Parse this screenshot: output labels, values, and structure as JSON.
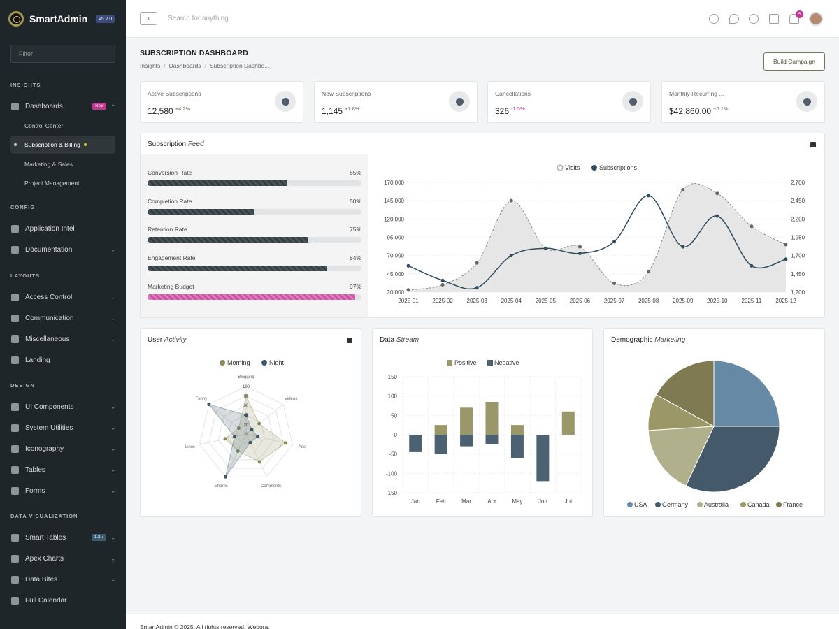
{
  "brand": {
    "name": "SmartAdmin",
    "version": "v5.2.0"
  },
  "sidebar": {
    "filter_placeholder": "Filter",
    "sections": {
      "insights": "INSIGHTS",
      "config": "CONFIG",
      "layouts": "LAYOUTS",
      "design": "DESIGN",
      "dataviz": "DATA VISUALIZATION"
    },
    "dashboards": {
      "label": "Dashboards",
      "badge": "New"
    },
    "sub": [
      "Control Center",
      "Subscription & Billing",
      "Marketing & Sales",
      "Project Management"
    ],
    "config": [
      "Application Intel",
      "Documentation"
    ],
    "layouts": [
      "Access Control",
      "Communication",
      "Miscellaneous",
      "Landing"
    ],
    "design": [
      "UI Components",
      "System Utilities",
      "Iconography",
      "Tables",
      "Forms"
    ],
    "dataviz": [
      "Smart Tables",
      "Apex Charts",
      "Data Bites",
      "Full Calendar"
    ],
    "smart_tables_badge": "1.2.7"
  },
  "topbar": {
    "search_placeholder": "Search for anything",
    "notif_count": "5"
  },
  "page": {
    "title": "SUBSCRIPTION DASHBOARD",
    "crumbs": [
      "Insights",
      "Dashboards",
      "Subscription Dashbo..."
    ],
    "build_button": "Build Campaign"
  },
  "stats": [
    {
      "label": "Active Subscriptions",
      "value": "12,580",
      "delta": "+4.2%"
    },
    {
      "label": "New Subscriptions",
      "value": "1,145",
      "delta": "+7.8%"
    },
    {
      "label": "Cancellations",
      "value": "326",
      "delta": "-1.5%"
    },
    {
      "label": "Monthly Recurring ...",
      "value": "$42,860.00",
      "delta": "+6.1%"
    }
  ],
  "feed": {
    "title": "Subscription",
    "title_em": "Feed",
    "progress": [
      {
        "label": "Conversion Rate",
        "pct": "65%",
        "value": 0.65
      },
      {
        "label": "Completion Rate",
        "pct": "50%",
        "value": 0.5
      },
      {
        "label": "Retention Rate",
        "pct": "75%",
        "value": 0.75
      },
      {
        "label": "Engagement Rate",
        "pct": "84%",
        "value": 0.84
      },
      {
        "label": "Marketing Budget",
        "pct": "97%",
        "value": 0.97
      }
    ]
  },
  "activity": {
    "title": "User",
    "title_em": "Activity"
  },
  "stream": {
    "title": "Data",
    "title_em": "Stream"
  },
  "demo": {
    "title": "Demographic",
    "title_em": "Marketing"
  },
  "footer": {
    "text": "SmartAdmin © 2025. All rights reserved, Webora."
  },
  "chart_data": [
    {
      "type": "area",
      "categories": [
        "2025-01",
        "2025-02",
        "2025-03",
        "2025-04",
        "2025-05",
        "2025-06",
        "2025-07",
        "2025-08",
        "2025-09",
        "2025-10",
        "2025-11",
        "2025-12"
      ],
      "series": [
        {
          "name": "Visits",
          "axis": "left",
          "values": [
            23000,
            30000,
            60000,
            145000,
            80000,
            82000,
            32000,
            48000,
            160000,
            155000,
            110000,
            85000
          ]
        },
        {
          "name": "Subscriptions",
          "axis": "right",
          "values": [
            1560,
            1360,
            1260,
            1700,
            1800,
            1730,
            1890,
            2520,
            1820,
            2240,
            1560,
            1650
          ]
        }
      ],
      "y_ticks": [
        "20,000",
        "45,000",
        "70,000",
        "95,000",
        "120,000",
        "145,000",
        "170,000"
      ],
      "y2_ticks": [
        "1,200",
        "1,450",
        "1,700",
        "1,950",
        "2,200",
        "2,450",
        "2,700"
      ],
      "ylim": [
        20000,
        170000
      ],
      "y2lim": [
        1200,
        2700
      ]
    },
    {
      "type": "radar",
      "axes": [
        "Blogging",
        "Videos",
        "Ads",
        "Comments",
        "Shares",
        "Likes",
        "Funny"
      ],
      "ticks": [
        "0",
        "20",
        "40",
        "60",
        "80",
        "100"
      ],
      "series": [
        {
          "name": "Morning",
          "color": "#8a8a5c",
          "values": [
            80,
            35,
            85,
            65,
            40,
            45,
            20
          ]
        },
        {
          "name": "Night",
          "color": "#3c5566",
          "values": [
            40,
            15,
            25,
            20,
            100,
            25,
            100
          ]
        }
      ]
    },
    {
      "type": "bar",
      "categories": [
        "Jan",
        "Feb",
        "Mar",
        "Apr",
        "May",
        "Jun",
        "Jul"
      ],
      "series": [
        {
          "name": "Positive",
          "color": "#9a9868",
          "values": [
            0,
            25,
            70,
            85,
            25,
            0,
            60
          ]
        },
        {
          "name": "Negative",
          "color": "#4c6172",
          "values": [
            -45,
            -50,
            -30,
            -25,
            -60,
            -120,
            0
          ]
        }
      ],
      "y_ticks": [
        "150",
        "100",
        "50",
        "0",
        "-50",
        "-100",
        "-150"
      ],
      "ylim": [
        -150,
        150
      ]
    },
    {
      "type": "pie",
      "labels": [
        "USA",
        "Germany",
        "Australia",
        "Canada",
        "France"
      ],
      "values": [
        25,
        32,
        17,
        9,
        17
      ],
      "colors": [
        "#668aa6",
        "#44596a",
        "#b1b08d",
        "#9b9766",
        "#807a52"
      ]
    }
  ]
}
